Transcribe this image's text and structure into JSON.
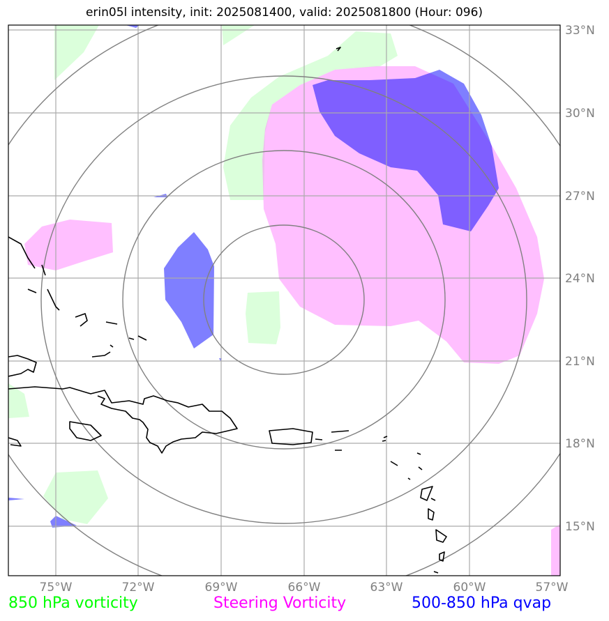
{
  "title": "erin05l intensity, init: 2025081400, valid: 2025081800 (Hour: 096)",
  "map": {
    "lon_range": [
      -76.5,
      -56.5
    ],
    "lat_range": [
      13,
      33.4
    ],
    "lon_ticks": [
      "75°W",
      "72°W",
      "69°W",
      "66°W",
      "63°W",
      "60°W",
      "57°W"
    ],
    "lat_ticks": [
      "15°N",
      "18°N",
      "21°N",
      "24°N",
      "27°N",
      "30°N",
      "33°N"
    ],
    "gridline_color": "#aaaaaa",
    "range_ring_color": "#808080",
    "coastline_color": "#000000"
  },
  "legend": {
    "vorticity_850": {
      "label": "850 hPa vorticity",
      "color": "#00ff00",
      "fill": "#ccffcc"
    },
    "steering_vorticity": {
      "label": "Steering Vorticity",
      "color": "#ff00ff",
      "fill": "#ff80ff"
    },
    "qvap_500_850": {
      "label": "500-850 hPa qvap",
      "color": "#0000ff",
      "fill": "#0000ff"
    }
  }
}
